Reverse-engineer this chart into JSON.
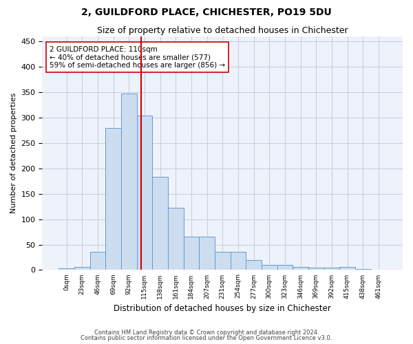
{
  "title_line1": "2, GUILDFORD PLACE, CHICHESTER, PO19 5DU",
  "title_line2": "Size of property relative to detached houses in Chichester",
  "xlabel": "Distribution of detached houses by size in Chichester",
  "ylabel": "Number of detached properties",
  "bar_labels": [
    "0sqm",
    "23sqm",
    "46sqm",
    "69sqm",
    "92sqm",
    "115sqm",
    "138sqm",
    "161sqm",
    "184sqm",
    "207sqm",
    "231sqm",
    "254sqm",
    "277sqm",
    "300sqm",
    "323sqm",
    "346sqm",
    "369sqm",
    "392sqm",
    "415sqm",
    "438sqm",
    "461sqm"
  ],
  "bar_heights": [
    3,
    6,
    36,
    280,
    347,
    304,
    184,
    122,
    65,
    65,
    36,
    36,
    20,
    10,
    10,
    6,
    5,
    5,
    6,
    2,
    1
  ],
  "bar_color": "#ccddf0",
  "bar_edge_color": "#6699cc",
  "vline_x": 4.78,
  "vline_color": "#cc0000",
  "annotation_text": "2 GUILDFORD PLACE: 110sqm\n← 40% of detached houses are smaller (577)\n59% of semi-detached houses are larger (856) →",
  "annotation_box_color": "white",
  "annotation_box_edge": "#cc0000",
  "ylim": [
    0,
    460
  ],
  "yticks": [
    0,
    50,
    100,
    150,
    200,
    250,
    300,
    350,
    400,
    450
  ],
  "footer_line1": "Contains HM Land Registry data © Crown copyright and database right 2024.",
  "footer_line2": "Contains public sector information licensed under the Open Government Licence v3.0.",
  "bg_color": "#ffffff",
  "plot_bg_color": "#eef2fb",
  "grid_color": "#c8d0e0"
}
